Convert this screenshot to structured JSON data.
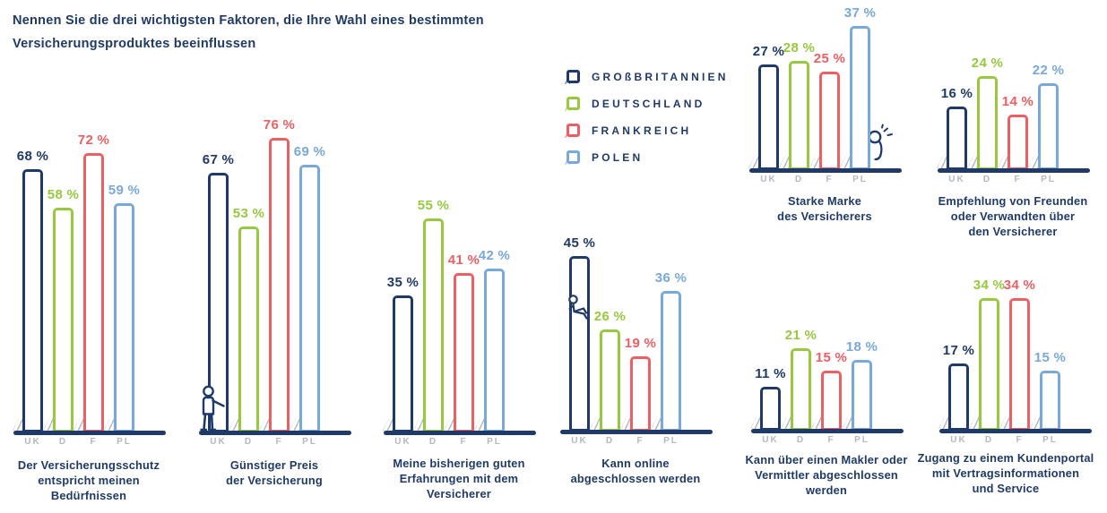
{
  "header": {
    "line1": "Nennen Sie die drei wichtigsten Faktoren, die Ihre Wahl eines bestimmten",
    "line2": "Versicherungsproduktes beeinflussen"
  },
  "colors": {
    "navy": "#1f3a68",
    "green": "#97c93f",
    "red": "#ec5f63",
    "blue": "#79a9da",
    "tick_gray": "#b3b8c2",
    "hatch_gray": "#aab0b8"
  },
  "legend": {
    "items": [
      {
        "label": "GROßBRITANNIEN",
        "color_key": "navy"
      },
      {
        "label": "DEUTSCHLAND",
        "color_key": "green"
      },
      {
        "label": "FRANKREICH",
        "color_key": "red"
      },
      {
        "label": "POLEN",
        "color_key": "blue"
      }
    ]
  },
  "chart_data": {
    "type": "bar",
    "title": "Nennen Sie die drei wichtigsten Faktoren, die Ihre Wahl eines bestimmten Versicherungsproduktes beeinflussen",
    "unit": "percent",
    "value_suffix": " %",
    "ylim": [
      0,
      80
    ],
    "grid": false,
    "legend_position": "top-center",
    "categories": [
      "UK",
      "D",
      "F",
      "PL"
    ],
    "series_names": [
      "Großbritannien",
      "Deutschland",
      "Frankreich",
      "Polen"
    ],
    "series_color_keys": [
      "navy",
      "green",
      "red",
      "blue"
    ],
    "groups": [
      {
        "caption": [
          "Der Versicherungsschutz",
          "entspricht meinen",
          "Bedürfnissen"
        ],
        "values": [
          68,
          58,
          72,
          59
        ]
      },
      {
        "caption": [
          "Günstiger Preis",
          "der Versicherung"
        ],
        "values": [
          67,
          53,
          76,
          69
        ]
      },
      {
        "caption": [
          "Meine bisherigen guten",
          "Erfahrungen mit dem",
          "Versicherer"
        ],
        "values": [
          35,
          55,
          41,
          42
        ]
      },
      {
        "caption": [
          "Kann online",
          "abgeschlossen werden"
        ],
        "values": [
          45,
          26,
          19,
          36
        ]
      },
      {
        "caption": [
          "Starke Marke",
          "des Versicherers"
        ],
        "values": [
          27,
          28,
          25,
          37
        ]
      },
      {
        "caption": [
          "Empfehlung von Freunden",
          "oder Verwandten über",
          "den Versicherer"
        ],
        "values": [
          16,
          24,
          14,
          22
        ]
      },
      {
        "caption": [
          "Kann über einen Makler oder",
          "Vermittler abgeschlossen",
          "werden"
        ],
        "values": [
          11,
          21,
          15,
          18
        ]
      },
      {
        "caption": [
          "Zugang zu einem Kundenportal",
          "mit Vertragsinformationen",
          "und Service"
        ],
        "values": [
          17,
          34,
          34,
          15
        ]
      }
    ]
  }
}
